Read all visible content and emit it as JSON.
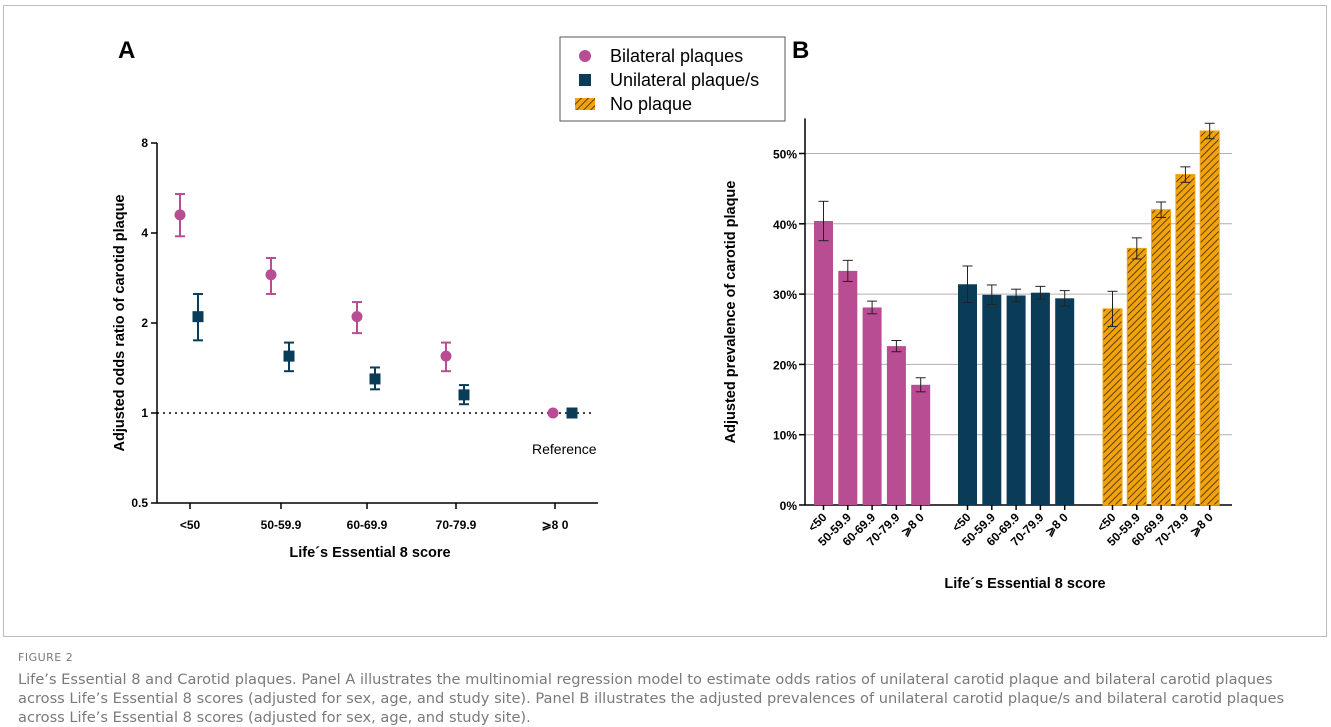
{
  "figure": {
    "label": "FIGURE 2",
    "caption": "Life’s Essential 8 and Carotid plaques. Panel A illustrates the multinomial regression model to estimate odds ratios of unilateral carotid plaque and bilateral carotid plaques across Life’s Essential 8 scores (adjusted for sex, age, and study site). Panel B illustrates the adjusted prevalences of unilateral carotid plaque/s and bilateral carotid plaques across Life’s Essential 8 scores (adjusted for sex, age, and study site)."
  },
  "legend": {
    "items": [
      {
        "label": "Bilateral plaques",
        "marker": "circle",
        "color": "#b84d94"
      },
      {
        "label": "Unilateral plaque/s",
        "marker": "square",
        "color": "#0b3c57"
      },
      {
        "label": "No plaque",
        "marker": "hatched",
        "color": "#f2a20c"
      }
    ]
  },
  "chart_data": [
    {
      "panel": "A",
      "type": "scatter",
      "ylabel": "Adjusted odds ratio of carotid plaque",
      "xlabel": "Life´s Essential 8 score",
      "yscale": "log2",
      "ylim": [
        0.5,
        8
      ],
      "yticks": [
        0.5,
        1,
        2,
        4,
        8
      ],
      "categories": [
        "<50",
        "50-59.9",
        "60-69.9",
        "70-79.9",
        "⩾8 0"
      ],
      "reference_line": 1,
      "annotation": "Reference",
      "series": [
        {
          "name": "Bilateral plaques",
          "color": "#b84d94",
          "marker": "circle",
          "values": [
            4.6,
            2.9,
            2.1,
            1.55,
            1.0
          ],
          "lower": [
            3.9,
            2.5,
            1.85,
            1.38,
            null
          ],
          "upper": [
            5.4,
            3.3,
            2.35,
            1.72,
            null
          ]
        },
        {
          "name": "Unilateral plaque/s",
          "color": "#0b3c57",
          "marker": "square",
          "values": [
            2.1,
            1.55,
            1.3,
            1.15,
            1.0
          ],
          "lower": [
            1.75,
            1.38,
            1.2,
            1.07,
            null
          ],
          "upper": [
            2.5,
            1.72,
            1.42,
            1.24,
            null
          ]
        }
      ]
    },
    {
      "panel": "B",
      "type": "bar",
      "ylabel": "Adjusted prevalence of carotid plaque",
      "xlabel": "Life´s Essential 8 score",
      "ylim": [
        0,
        0.55
      ],
      "yticks": [
        0,
        0.1,
        0.2,
        0.3,
        0.4,
        0.5
      ],
      "ytick_labels": [
        "0%",
        "10%",
        "20%",
        "30%",
        "40%",
        "50%"
      ],
      "grid": true,
      "categories": [
        "<50",
        "50-59.9",
        "60-69.9",
        "70-79.9",
        "⩾8 0"
      ],
      "series": [
        {
          "name": "Bilateral plaques",
          "color": "#b84d94",
          "pattern": "solid",
          "values": [
            0.404,
            0.333,
            0.281,
            0.226,
            0.171
          ],
          "error": [
            0.028,
            0.015,
            0.009,
            0.008,
            0.01
          ]
        },
        {
          "name": "Unilateral plaque/s",
          "color": "#0b3c57",
          "pattern": "solid",
          "values": [
            0.314,
            0.299,
            0.298,
            0.302,
            0.294
          ],
          "error": [
            0.026,
            0.014,
            0.009,
            0.009,
            0.011
          ]
        },
        {
          "name": "No plaque",
          "color": "#f2a20c",
          "pattern": "hatched",
          "values": [
            0.279,
            0.365,
            0.42,
            0.47,
            0.532
          ],
          "error": [
            0.025,
            0.015,
            0.011,
            0.011,
            0.011
          ]
        }
      ]
    }
  ]
}
